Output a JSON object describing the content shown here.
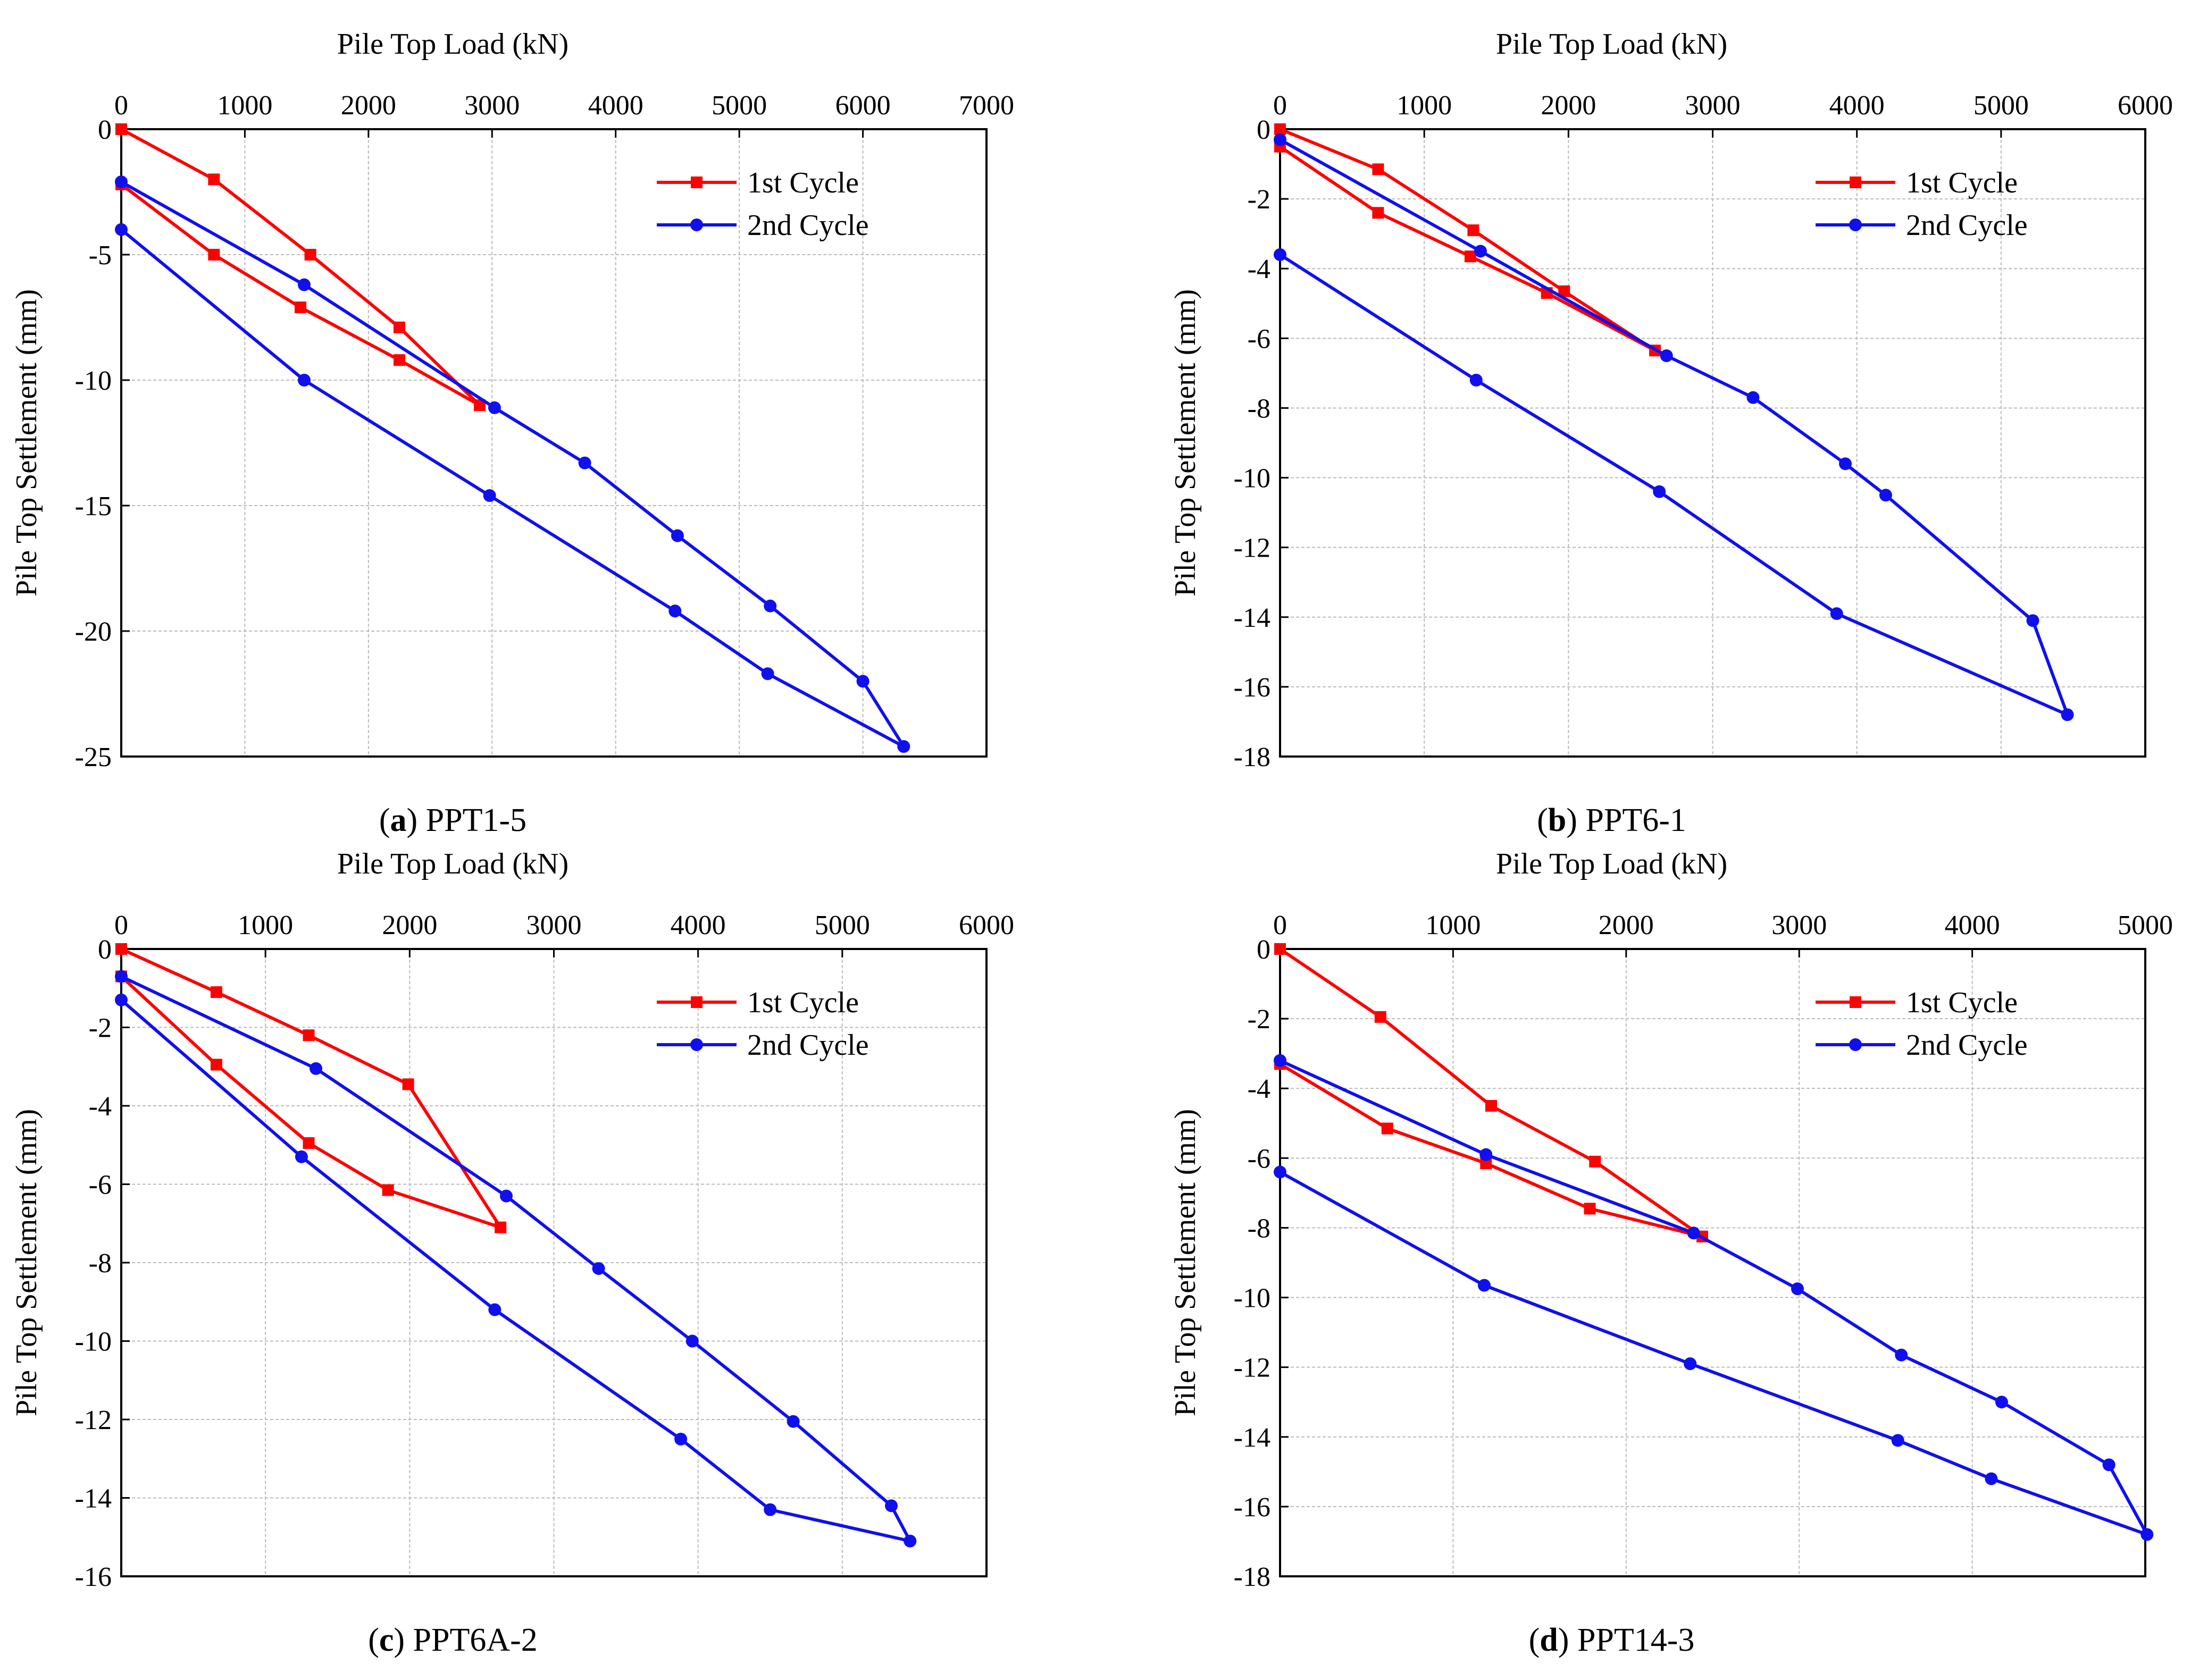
{
  "figure": {
    "colors": {
      "first_cycle": "#ff0000",
      "second_cycle": "#1010ee",
      "axis": "#000000",
      "grid": "#bbbbbb"
    }
  },
  "chart_data": [
    {
      "type": "line",
      "panel_letter": "a",
      "caption": "PPT1-5",
      "xlabel": "Pile Top Load (kN)",
      "ylabel": "Pile Top Settlement (mm)",
      "xlim": [
        0,
        7000
      ],
      "ylim": [
        -25,
        0
      ],
      "xticks": [
        0,
        1000,
        2000,
        3000,
        4000,
        5000,
        6000,
        7000
      ],
      "yticks": [
        0,
        -5,
        -10,
        -15,
        -20,
        -25
      ],
      "legend_position": "top-right",
      "series": [
        {
          "name": "1st Cycle",
          "marker": "square",
          "x": [
            0,
            750,
            1530,
            2250,
            2900,
            2250,
            1450,
            750,
            0
          ],
          "y": [
            0,
            -2.0,
            -5.0,
            -7.9,
            -11.0,
            -9.2,
            -7.1,
            -5.0,
            -2.2
          ]
        },
        {
          "name": "2nd Cycle",
          "marker": "circle",
          "x": [
            0,
            1480,
            3020,
            3750,
            4500,
            5250,
            6000,
            6330,
            5230,
            4480,
            2980,
            1480,
            0
          ],
          "y": [
            -2.1,
            -6.2,
            -11.1,
            -13.3,
            -16.2,
            -19.0,
            -22.0,
            -24.6,
            -21.7,
            -19.2,
            -14.6,
            -10.0,
            -4.0
          ]
        }
      ]
    },
    {
      "type": "line",
      "panel_letter": "b",
      "caption": "PPT6-1",
      "xlabel": "Pile Top Load (kN)",
      "ylabel": "Pile Top Settlement (mm)",
      "xlim": [
        0,
        6000
      ],
      "ylim": [
        -18,
        0
      ],
      "xticks": [
        0,
        1000,
        2000,
        3000,
        4000,
        5000,
        6000
      ],
      "yticks": [
        0,
        -2,
        -4,
        -6,
        -8,
        -10,
        -12,
        -14,
        -16,
        -18
      ],
      "legend_position": "top-right",
      "series": [
        {
          "name": "1st Cycle",
          "marker": "square",
          "x": [
            0,
            680,
            1340,
            1970,
            2600,
            1850,
            1320,
            680,
            0
          ],
          "y": [
            0,
            -1.15,
            -2.9,
            -4.65,
            -6.35,
            -4.7,
            -3.65,
            -2.4,
            -0.5
          ]
        },
        {
          "name": "2nd Cycle",
          "marker": "circle",
          "x": [
            0,
            1390,
            2680,
            3280,
            3920,
            4200,
            5220,
            5460,
            3860,
            2630,
            1360,
            0
          ],
          "y": [
            -0.3,
            -3.5,
            -6.5,
            -7.7,
            -9.6,
            -10.5,
            -14.1,
            -16.8,
            -13.9,
            -10.4,
            -7.2,
            -3.6
          ]
        }
      ]
    },
    {
      "type": "line",
      "panel_letter": "c",
      "caption": "PPT6A-2",
      "xlabel": "Pile Top Load (kN)",
      "ylabel": "Pile Top Settlement (mm)",
      "xlim": [
        0,
        6000
      ],
      "ylim": [
        -16,
        0
      ],
      "xticks": [
        0,
        1000,
        2000,
        3000,
        4000,
        5000,
        6000
      ],
      "yticks": [
        0,
        -2,
        -4,
        -6,
        -8,
        -10,
        -12,
        -14,
        -16
      ],
      "legend_position": "top-right",
      "series": [
        {
          "name": "1st Cycle",
          "marker": "square",
          "x": [
            0,
            660,
            1300,
            1990,
            2630,
            1850,
            1300,
            660,
            0
          ],
          "y": [
            0,
            -1.1,
            -2.2,
            -3.45,
            -7.1,
            -6.15,
            -4.95,
            -2.95,
            -0.7
          ]
        },
        {
          "name": "2nd Cycle",
          "marker": "circle",
          "x": [
            0,
            1350,
            2670,
            3310,
            3960,
            4660,
            5340,
            5470,
            4500,
            3880,
            2590,
            1250,
            0
          ],
          "y": [
            -0.7,
            -3.05,
            -6.3,
            -8.15,
            -10.0,
            -12.05,
            -14.2,
            -15.1,
            -14.3,
            -12.5,
            -9.2,
            -5.3,
            -1.3
          ]
        }
      ]
    },
    {
      "type": "line",
      "panel_letter": "d",
      "caption": "PPT14-3",
      "xlabel": "Pile Top Load (kN)",
      "ylabel": "Pile Top Settlement (mm)",
      "xlim": [
        0,
        5000
      ],
      "ylim": [
        -18,
        0
      ],
      "xticks": [
        0,
        1000,
        2000,
        3000,
        4000,
        5000
      ],
      "yticks": [
        0,
        -2,
        -4,
        -6,
        -8,
        -10,
        -12,
        -14,
        -16,
        -18
      ],
      "legend_position": "top-right",
      "series": [
        {
          "name": "1st Cycle",
          "marker": "square",
          "x": [
            0,
            580,
            1220,
            1820,
            2440,
            1790,
            1190,
            620,
            0
          ],
          "y": [
            0,
            -1.95,
            -4.5,
            -6.1,
            -8.25,
            -7.45,
            -6.15,
            -5.15,
            -3.3
          ]
        },
        {
          "name": "2nd Cycle",
          "marker": "circle",
          "x": [
            0,
            1190,
            2390,
            2990,
            3590,
            4170,
            4790,
            5010,
            4110,
            3570,
            2370,
            1180,
            0
          ],
          "y": [
            -3.2,
            -5.9,
            -8.15,
            -9.75,
            -11.65,
            -13.0,
            -14.8,
            -16.8,
            -15.2,
            -14.1,
            -11.9,
            -9.65,
            -6.4
          ]
        }
      ]
    }
  ]
}
